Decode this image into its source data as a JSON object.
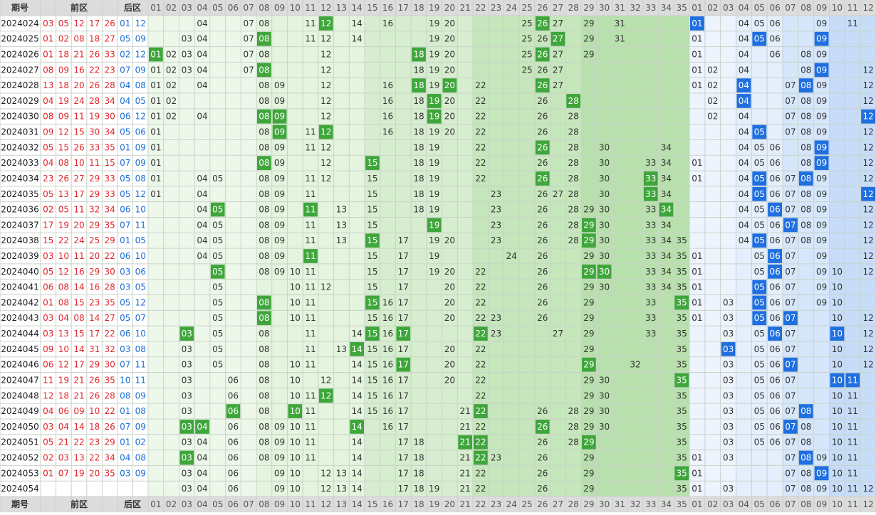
{
  "header": {
    "period": "期号",
    "front": "前区",
    "back": "后区"
  },
  "front_columns": [
    "01",
    "02",
    "03",
    "04",
    "05",
    "06",
    "07",
    "08",
    "09",
    "10",
    "11",
    "12",
    "13",
    "14",
    "15",
    "16",
    "17",
    "18",
    "19",
    "20",
    "21",
    "22",
    "23",
    "24",
    "25",
    "26",
    "27",
    "28",
    "29",
    "30",
    "31",
    "32",
    "33",
    "34",
    "35"
  ],
  "back_columns": [
    "01",
    "02",
    "03",
    "04",
    "05",
    "06",
    "07",
    "08",
    "09",
    "10",
    "11",
    "12"
  ],
  "rows": [
    {
      "period": "2024024",
      "front": [
        "03",
        "05",
        "12",
        "17",
        "26"
      ],
      "back": [
        "01",
        "12"
      ],
      "front_cells": [
        "04",
        "07",
        "08",
        "11",
        "12",
        "14",
        "16",
        "19",
        "20",
        "25",
        "26",
        "27",
        "29",
        "31"
      ],
      "back_cells": [
        "01",
        "04",
        "05",
        "06",
        "09",
        "11"
      ]
    },
    {
      "period": "2024025",
      "front": [
        "01",
        "02",
        "08",
        "18",
        "27"
      ],
      "back": [
        "05",
        "09"
      ],
      "front_cells": [
        "03",
        "04",
        "07",
        "08",
        "11",
        "12",
        "14",
        "19",
        "20",
        "25",
        "26",
        "27",
        "29",
        "31"
      ],
      "back_cells": [
        "01",
        "04",
        "05",
        "06",
        "09"
      ]
    },
    {
      "period": "2024026",
      "front": [
        "01",
        "18",
        "21",
        "26",
        "33"
      ],
      "back": [
        "02",
        "12"
      ],
      "front_cells": [
        "01",
        "02",
        "03",
        "04",
        "07",
        "08",
        "12",
        "18",
        "19",
        "20",
        "25",
        "26",
        "27",
        "29"
      ],
      "back_cells": [
        "01",
        "04",
        "06",
        "08",
        "09"
      ]
    },
    {
      "period": "2024027",
      "front": [
        "08",
        "09",
        "16",
        "22",
        "23"
      ],
      "back": [
        "07",
        "09"
      ],
      "front_cells": [
        "01",
        "02",
        "03",
        "04",
        "07",
        "08",
        "12",
        "18",
        "19",
        "20",
        "25",
        "26",
        "27"
      ],
      "back_cells": [
        "01",
        "02",
        "04",
        "08",
        "09",
        "12"
      ]
    },
    {
      "period": "2024028",
      "front": [
        "13",
        "18",
        "20",
        "26",
        "28"
      ],
      "back": [
        "04",
        "08"
      ],
      "front_cells": [
        "01",
        "02",
        "04",
        "08",
        "09",
        "12",
        "16",
        "18",
        "19",
        "20",
        "22",
        "26",
        "27"
      ],
      "back_cells": [
        "01",
        "02",
        "04",
        "07",
        "08",
        "09",
        "12"
      ]
    },
    {
      "period": "2024029",
      "front": [
        "04",
        "19",
        "24",
        "28",
        "34"
      ],
      "back": [
        "04",
        "05"
      ],
      "front_cells": [
        "01",
        "02",
        "08",
        "09",
        "12",
        "16",
        "18",
        "19",
        "20",
        "22",
        "26",
        "28"
      ],
      "back_cells": [
        "02",
        "04",
        "07",
        "08",
        "09",
        "12"
      ]
    },
    {
      "period": "2024030",
      "front": [
        "08",
        "09",
        "11",
        "19",
        "30"
      ],
      "back": [
        "06",
        "12"
      ],
      "front_cells": [
        "01",
        "02",
        "04",
        "08",
        "09",
        "12",
        "16",
        "18",
        "19",
        "20",
        "22",
        "26",
        "28"
      ],
      "back_cells": [
        "02",
        "04",
        "07",
        "08",
        "09",
        "12"
      ]
    },
    {
      "period": "2024031",
      "front": [
        "09",
        "12",
        "15",
        "30",
        "34"
      ],
      "back": [
        "05",
        "06"
      ],
      "front_cells": [
        "01",
        "08",
        "09",
        "11",
        "12",
        "16",
        "18",
        "19",
        "20",
        "22",
        "26",
        "28"
      ],
      "back_cells": [
        "04",
        "05",
        "07",
        "08",
        "09",
        "12"
      ]
    },
    {
      "period": "2024032",
      "front": [
        "05",
        "15",
        "26",
        "33",
        "35"
      ],
      "back": [
        "01",
        "09"
      ],
      "front_cells": [
        "01",
        "08",
        "09",
        "11",
        "12",
        "18",
        "19",
        "22",
        "26",
        "28",
        "30",
        "34"
      ],
      "back_cells": [
        "04",
        "05",
        "06",
        "08",
        "09",
        "12"
      ]
    },
    {
      "period": "2024033",
      "front": [
        "04",
        "08",
        "10",
        "11",
        "15"
      ],
      "back": [
        "07",
        "09"
      ],
      "front_cells": [
        "01",
        "08",
        "09",
        "12",
        "15",
        "18",
        "19",
        "22",
        "26",
        "28",
        "30",
        "33",
        "34"
      ],
      "back_cells": [
        "01",
        "04",
        "05",
        "06",
        "08",
        "09",
        "12"
      ]
    },
    {
      "period": "2024034",
      "front": [
        "23",
        "26",
        "27",
        "29",
        "33"
      ],
      "back": [
        "05",
        "08"
      ],
      "front_cells": [
        "01",
        "04",
        "05",
        "08",
        "09",
        "11",
        "12",
        "15",
        "18",
        "19",
        "22",
        "26",
        "28",
        "30",
        "33",
        "34"
      ],
      "back_cells": [
        "01",
        "04",
        "05",
        "06",
        "07",
        "08",
        "09",
        "12"
      ]
    },
    {
      "period": "2024035",
      "front": [
        "05",
        "13",
        "17",
        "29",
        "33"
      ],
      "back": [
        "05",
        "12"
      ],
      "front_cells": [
        "01",
        "04",
        "08",
        "09",
        "11",
        "15",
        "18",
        "19",
        "23",
        "26",
        "27",
        "28",
        "30",
        "33",
        "34"
      ],
      "back_cells": [
        "04",
        "05",
        "06",
        "07",
        "08",
        "09",
        "12"
      ]
    },
    {
      "period": "2024036",
      "front": [
        "02",
        "05",
        "11",
        "32",
        "34"
      ],
      "back": [
        "06",
        "10"
      ],
      "front_cells": [
        "04",
        "05",
        "08",
        "09",
        "11",
        "13",
        "15",
        "18",
        "19",
        "23",
        "26",
        "28",
        "29",
        "30",
        "33",
        "34"
      ],
      "back_cells": [
        "04",
        "05",
        "06",
        "07",
        "08",
        "09",
        "12"
      ]
    },
    {
      "period": "2024037",
      "front": [
        "17",
        "19",
        "20",
        "29",
        "35"
      ],
      "back": [
        "07",
        "11"
      ],
      "front_cells": [
        "04",
        "05",
        "08",
        "09",
        "11",
        "13",
        "15",
        "19",
        "23",
        "26",
        "28",
        "29",
        "30",
        "33",
        "34"
      ],
      "back_cells": [
        "04",
        "05",
        "06",
        "07",
        "08",
        "09",
        "12"
      ]
    },
    {
      "period": "2024038",
      "front": [
        "15",
        "22",
        "24",
        "25",
        "29"
      ],
      "back": [
        "01",
        "05"
      ],
      "front_cells": [
        "04",
        "05",
        "08",
        "09",
        "11",
        "13",
        "15",
        "17",
        "19",
        "20",
        "23",
        "26",
        "28",
        "29",
        "30",
        "33",
        "34",
        "35"
      ],
      "back_cells": [
        "04",
        "05",
        "06",
        "07",
        "08",
        "09",
        "12"
      ]
    },
    {
      "period": "2024039",
      "front": [
        "03",
        "10",
        "11",
        "20",
        "22"
      ],
      "back": [
        "06",
        "10"
      ],
      "front_cells": [
        "04",
        "05",
        "08",
        "09",
        "11",
        "15",
        "17",
        "19",
        "24",
        "26",
        "29",
        "30",
        "33",
        "34",
        "35"
      ],
      "back_cells": [
        "01",
        "05",
        "06",
        "07",
        "09",
        "12"
      ]
    },
    {
      "period": "2024040",
      "front": [
        "05",
        "12",
        "16",
        "29",
        "30"
      ],
      "back": [
        "03",
        "06"
      ],
      "front_cells": [
        "05",
        "08",
        "09",
        "10",
        "11",
        "15",
        "17",
        "19",
        "20",
        "22",
        "26",
        "29",
        "30",
        "33",
        "34",
        "35"
      ],
      "back_cells": [
        "01",
        "05",
        "06",
        "07",
        "09",
        "10",
        "12"
      ]
    },
    {
      "period": "2024041",
      "front": [
        "06",
        "08",
        "14",
        "16",
        "28"
      ],
      "back": [
        "03",
        "05"
      ],
      "front_cells": [
        "05",
        "10",
        "11",
        "12",
        "15",
        "17",
        "20",
        "22",
        "26",
        "29",
        "30",
        "33",
        "34",
        "35"
      ],
      "back_cells": [
        "01",
        "05",
        "06",
        "07",
        "09",
        "10"
      ]
    },
    {
      "period": "2024042",
      "front": [
        "01",
        "08",
        "15",
        "23",
        "35"
      ],
      "back": [
        "05",
        "12"
      ],
      "front_cells": [
        "05",
        "08",
        "10",
        "11",
        "15",
        "16",
        "17",
        "20",
        "22",
        "26",
        "29",
        "33",
        "35"
      ],
      "back_cells": [
        "01",
        "03",
        "05",
        "06",
        "07",
        "09",
        "10"
      ]
    },
    {
      "period": "2024043",
      "front": [
        "03",
        "04",
        "08",
        "14",
        "27"
      ],
      "back": [
        "05",
        "07"
      ],
      "front_cells": [
        "05",
        "08",
        "10",
        "11",
        "15",
        "16",
        "17",
        "20",
        "22",
        "23",
        "26",
        "29",
        "33",
        "35"
      ],
      "back_cells": [
        "01",
        "03",
        "05",
        "06",
        "07",
        "10",
        "12"
      ]
    },
    {
      "period": "2024044",
      "front": [
        "03",
        "13",
        "15",
        "17",
        "22"
      ],
      "back": [
        "06",
        "10"
      ],
      "front_cells": [
        "03",
        "05",
        "08",
        "11",
        "14",
        "15",
        "16",
        "17",
        "22",
        "23",
        "27",
        "29",
        "33",
        "35"
      ],
      "back_cells": [
        "03",
        "05",
        "06",
        "07",
        "10",
        "12"
      ]
    },
    {
      "period": "2024045",
      "front": [
        "09",
        "10",
        "14",
        "31",
        "32"
      ],
      "back": [
        "03",
        "08"
      ],
      "front_cells": [
        "03",
        "05",
        "08",
        "11",
        "13",
        "14",
        "15",
        "16",
        "17",
        "20",
        "22",
        "29",
        "35"
      ],
      "back_cells": [
        "03",
        "05",
        "06",
        "07",
        "10",
        "12"
      ]
    },
    {
      "period": "2024046",
      "front": [
        "06",
        "12",
        "17",
        "29",
        "30"
      ],
      "back": [
        "07",
        "11"
      ],
      "front_cells": [
        "03",
        "05",
        "08",
        "10",
        "11",
        "14",
        "15",
        "16",
        "17",
        "20",
        "22",
        "29",
        "32",
        "35"
      ],
      "back_cells": [
        "03",
        "05",
        "06",
        "07",
        "10",
        "12"
      ]
    },
    {
      "period": "2024047",
      "front": [
        "11",
        "19",
        "21",
        "26",
        "35"
      ],
      "back": [
        "10",
        "11"
      ],
      "front_cells": [
        "03",
        "06",
        "08",
        "10",
        "12",
        "14",
        "15",
        "16",
        "17",
        "20",
        "22",
        "29",
        "30",
        "35"
      ],
      "back_cells": [
        "03",
        "05",
        "06",
        "07",
        "10",
        "11"
      ]
    },
    {
      "period": "2024048",
      "front": [
        "12",
        "18",
        "21",
        "26",
        "28"
      ],
      "back": [
        "08",
        "09"
      ],
      "front_cells": [
        "03",
        "06",
        "08",
        "10",
        "11",
        "12",
        "14",
        "15",
        "16",
        "17",
        "22",
        "29",
        "30",
        "35"
      ],
      "back_cells": [
        "03",
        "05",
        "06",
        "07",
        "10",
        "11"
      ]
    },
    {
      "period": "2024049",
      "front": [
        "04",
        "06",
        "09",
        "10",
        "22"
      ],
      "back": [
        "01",
        "08"
      ],
      "front_cells": [
        "03",
        "06",
        "08",
        "10",
        "11",
        "14",
        "15",
        "16",
        "17",
        "21",
        "22",
        "26",
        "28",
        "29",
        "30",
        "35"
      ],
      "back_cells": [
        "03",
        "05",
        "06",
        "07",
        "08",
        "10",
        "11"
      ]
    },
    {
      "period": "2024050",
      "front": [
        "03",
        "04",
        "14",
        "18",
        "26"
      ],
      "back": [
        "07",
        "09"
      ],
      "front_cells": [
        "03",
        "04",
        "06",
        "08",
        "09",
        "10",
        "11",
        "14",
        "16",
        "17",
        "21",
        "22",
        "26",
        "28",
        "29",
        "30",
        "35"
      ],
      "back_cells": [
        "03",
        "05",
        "06",
        "07",
        "08",
        "10",
        "11"
      ]
    },
    {
      "period": "2024051",
      "front": [
        "05",
        "21",
        "22",
        "23",
        "29"
      ],
      "back": [
        "01",
        "02"
      ],
      "front_cells": [
        "03",
        "04",
        "06",
        "08",
        "09",
        "10",
        "11",
        "14",
        "17",
        "18",
        "21",
        "22",
        "26",
        "28",
        "29",
        "35"
      ],
      "back_cells": [
        "03",
        "05",
        "06",
        "07",
        "08",
        "10",
        "11"
      ]
    },
    {
      "period": "2024052",
      "front": [
        "02",
        "03",
        "13",
        "22",
        "34"
      ],
      "back": [
        "04",
        "08"
      ],
      "front_cells": [
        "03",
        "04",
        "06",
        "08",
        "09",
        "10",
        "11",
        "14",
        "17",
        "18",
        "21",
        "22",
        "23",
        "26",
        "29",
        "35"
      ],
      "back_cells": [
        "01",
        "03",
        "07",
        "08",
        "09",
        "10",
        "11"
      ]
    },
    {
      "period": "2024053",
      "front": [
        "01",
        "07",
        "19",
        "20",
        "35"
      ],
      "back": [
        "03",
        "09"
      ],
      "front_cells": [
        "03",
        "04",
        "06",
        "09",
        "10",
        "12",
        "13",
        "14",
        "17",
        "18",
        "21",
        "22",
        "26",
        "29",
        "35"
      ],
      "back_cells": [
        "01",
        "07",
        "08",
        "09",
        "10",
        "11"
      ]
    },
    {
      "period": "2024054",
      "front": [],
      "back": [],
      "front_cells": [
        "03",
        "04",
        "06",
        "09",
        "10",
        "12",
        "13",
        "14",
        "17",
        "18",
        "19",
        "21",
        "22",
        "26",
        "29",
        "35"
      ],
      "back_cells": [
        "01",
        "03",
        "07",
        "08",
        "09",
        "10",
        "11",
        "12"
      ]
    }
  ]
}
